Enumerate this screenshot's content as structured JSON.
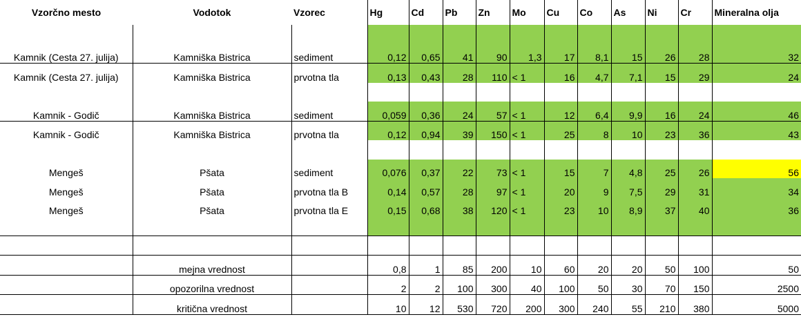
{
  "headers": [
    "Vzorčno mesto",
    "Vodotok",
    "Vzorec",
    "Hg",
    "Cd",
    "Pb",
    "Zn",
    "Mo",
    "Cu",
    "Co",
    "As",
    "Ni",
    "Cr",
    "Mineralna olja"
  ],
  "rows": [
    {
      "mesto": "",
      "vodotok": "",
      "vzorec": "",
      "values": [
        "",
        "",
        "",
        "",
        "",
        "",
        "",
        "",
        "",
        "",
        ""
      ]
    },
    {
      "mesto": "Kamnik (Cesta 27. julija)",
      "vodotok": "Kamniška Bistrica",
      "vzorec": "sediment",
      "values": [
        "0,12",
        "0,65",
        "41",
        "90",
        "1,3",
        "17",
        "8,1",
        "15",
        "26",
        "28",
        "32"
      ]
    },
    {
      "mesto": "Kamnik (Cesta 27. julija)",
      "vodotok": "Kamniška Bistrica",
      "vzorec": "prvotna tla",
      "values": [
        "0,13",
        "0,43",
        "28",
        "110",
        "< 1",
        "16",
        "4,7",
        "7,1",
        "15",
        "29",
        "24"
      ]
    },
    {
      "mesto": "",
      "vodotok": "",
      "vzorec": "",
      "values": [
        "",
        "",
        "",
        "",
        "",
        "",
        "",
        "",
        "",
        "",
        ""
      ]
    },
    {
      "mesto": "Kamnik - Godič",
      "vodotok": "Kamniška Bistrica",
      "vzorec": "sediment",
      "values": [
        "0,059",
        "0,36",
        "24",
        "57",
        "< 1",
        "12",
        "6,4",
        "9,9",
        "16",
        "24",
        "46"
      ]
    },
    {
      "mesto": "Kamnik - Godič",
      "vodotok": "Kamniška Bistrica",
      "vzorec": "prvotna tla",
      "values": [
        "0,12",
        "0,94",
        "39",
        "150",
        "< 1",
        "25",
        "8",
        "10",
        "23",
        "36",
        "43"
      ]
    },
    {
      "mesto": "",
      "vodotok": "",
      "vzorec": "",
      "values": [
        "",
        "",
        "",
        "",
        "",
        "",
        "",
        "",
        "",
        "",
        ""
      ]
    },
    {
      "mesto": "Mengeš",
      "vodotok": "Pšata",
      "vzorec": "sediment",
      "values": [
        "0,076",
        "0,37",
        "22",
        "73",
        "< 1",
        "15",
        "7",
        "4,8",
        "25",
        "26",
        "56"
      ]
    },
    {
      "mesto": "Mengeš",
      "vodotok": "Pšata",
      "vzorec": "prvotna tla B",
      "values": [
        "0,14",
        "0,57",
        "28",
        "97",
        "< 1",
        "20",
        "9",
        "7,5",
        "29",
        "31",
        "34"
      ]
    },
    {
      "mesto": "Mengeš",
      "vodotok": "Pšata",
      "vzorec": "prvotna tla E",
      "values": [
        "0,15",
        "0,68",
        "38",
        "120",
        "< 1",
        "23",
        "10",
        "8,9",
        "37",
        "40",
        "36"
      ]
    },
    {
      "mesto": "",
      "vodotok": "",
      "vzorec": "",
      "values": [
        "",
        "",
        "",
        "",
        "",
        "",
        "",
        "",
        "",
        "",
        ""
      ]
    }
  ],
  "limits": [
    {
      "label": "mejna vrednost",
      "values": [
        "0,8",
        "1",
        "85",
        "200",
        "10",
        "60",
        "20",
        "20",
        "50",
        "100",
        "50"
      ]
    },
    {
      "label": "opozorilna vrednost",
      "values": [
        "2",
        "2",
        "100",
        "300",
        "40",
        "100",
        "50",
        "30",
        "70",
        "150",
        "2500"
      ]
    },
    {
      "label": "kritična vrednost",
      "values": [
        "10",
        "12",
        "530",
        "720",
        "200",
        "300",
        "240",
        "55",
        "210",
        "380",
        "5000"
      ]
    }
  ],
  "colors": {
    "green": "#92d050",
    "yellow": "#ffff00"
  }
}
